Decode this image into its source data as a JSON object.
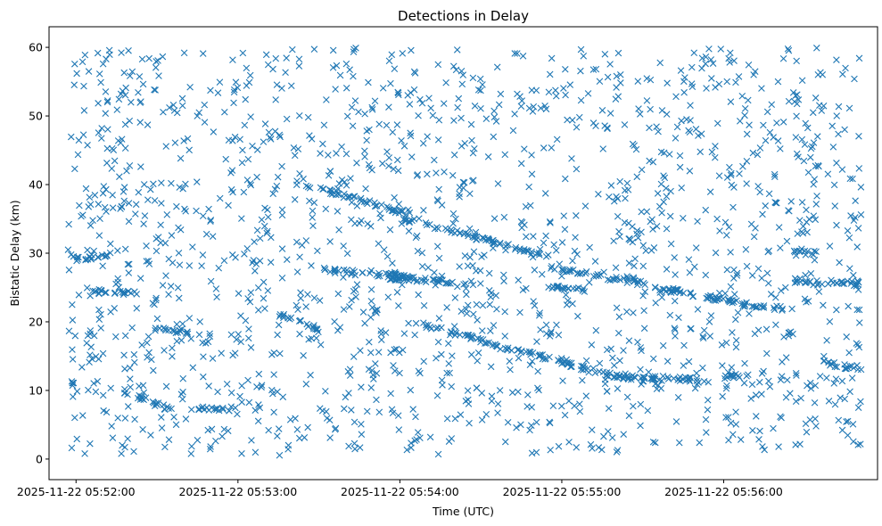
{
  "chart_data": {
    "type": "scatter",
    "title": "Detections in Delay",
    "xlabel": "Time (UTC)",
    "ylabel": "Bistatic Delay (km)",
    "marker": "x",
    "color": "#1f77b4",
    "grid": false,
    "x_unit": "seconds",
    "x_origin": "2025-11-22 05:52:00",
    "x_ticks": [
      {
        "value": 0,
        "label": "2025-11-22 05:52:00"
      },
      {
        "value": 60,
        "label": "2025-11-22 05:53:00"
      },
      {
        "value": 120,
        "label": "2025-11-22 05:54:00"
      },
      {
        "value": 180,
        "label": "2025-11-22 05:55:00"
      },
      {
        "value": 240,
        "label": "2025-11-22 05:56:00"
      }
    ],
    "y_ticks": [
      0,
      10,
      20,
      30,
      40,
      50,
      60
    ],
    "xlim": [
      -10,
      297
    ],
    "ylim": [
      -3,
      63
    ],
    "x_data_range": [
      -3,
      291
    ],
    "y_data_range": [
      0.5,
      60
    ],
    "tracks": [
      {
        "x": [
          -3,
          1
        ],
        "y": [
          11,
          11
        ]
      },
      {
        "x": [
          6,
          24
        ],
        "y": [
          24.5,
          24
        ]
      },
      {
        "x": [
          -1,
          14
        ],
        "y": [
          29,
          30
        ]
      },
      {
        "x": [
          29,
          42
        ],
        "y": [
          19,
          18.5
        ]
      },
      {
        "x": [
          17,
          36
        ],
        "y": [
          10,
          7
        ]
      },
      {
        "x": [
          45,
          60
        ],
        "y": [
          7.5,
          7.3
        ]
      },
      {
        "x": [
          75,
          90
        ],
        "y": [
          21,
          19
        ]
      },
      {
        "x": [
          92,
          125
        ],
        "y": [
          27.5,
          26.5
        ]
      },
      {
        "x": [
          110,
          112
        ],
        "y": [
          21.5,
          21.5
        ]
      },
      {
        "x": [
          85,
          125
        ],
        "y": [
          40,
          35.5
        ]
      },
      {
        "x": [
          115,
          150
        ],
        "y": [
          26.5,
          25.5
        ]
      },
      {
        "x": [
          122,
          175
        ],
        "y": [
          35,
          29.5
        ]
      },
      {
        "x": [
          125,
          200
        ],
        "y": [
          20,
          12
        ]
      },
      {
        "x": [
          175,
          255
        ],
        "y": [
          28,
          22
        ]
      },
      {
        "x": [
          175,
          190
        ],
        "y": [
          25,
          24.5
        ]
      },
      {
        "x": [
          200,
          210
        ],
        "y": [
          26.5,
          26
        ]
      },
      {
        "x": [
          200,
          235
        ],
        "y": [
          12,
          11.5
        ]
      },
      {
        "x": [
          265,
          275
        ],
        "y": [
          30,
          30
        ]
      },
      {
        "x": [
          277,
          291
        ],
        "y": [
          14,
          13
        ]
      },
      {
        "x": [
          240,
          250
        ],
        "y": [
          12,
          12.3
        ]
      },
      {
        "x": [
          266,
          291
        ],
        "y": [
          26,
          25.5
        ]
      },
      {
        "x": [
          258,
          262
        ],
        "y": [
          22,
          22
        ]
      }
    ]
  }
}
